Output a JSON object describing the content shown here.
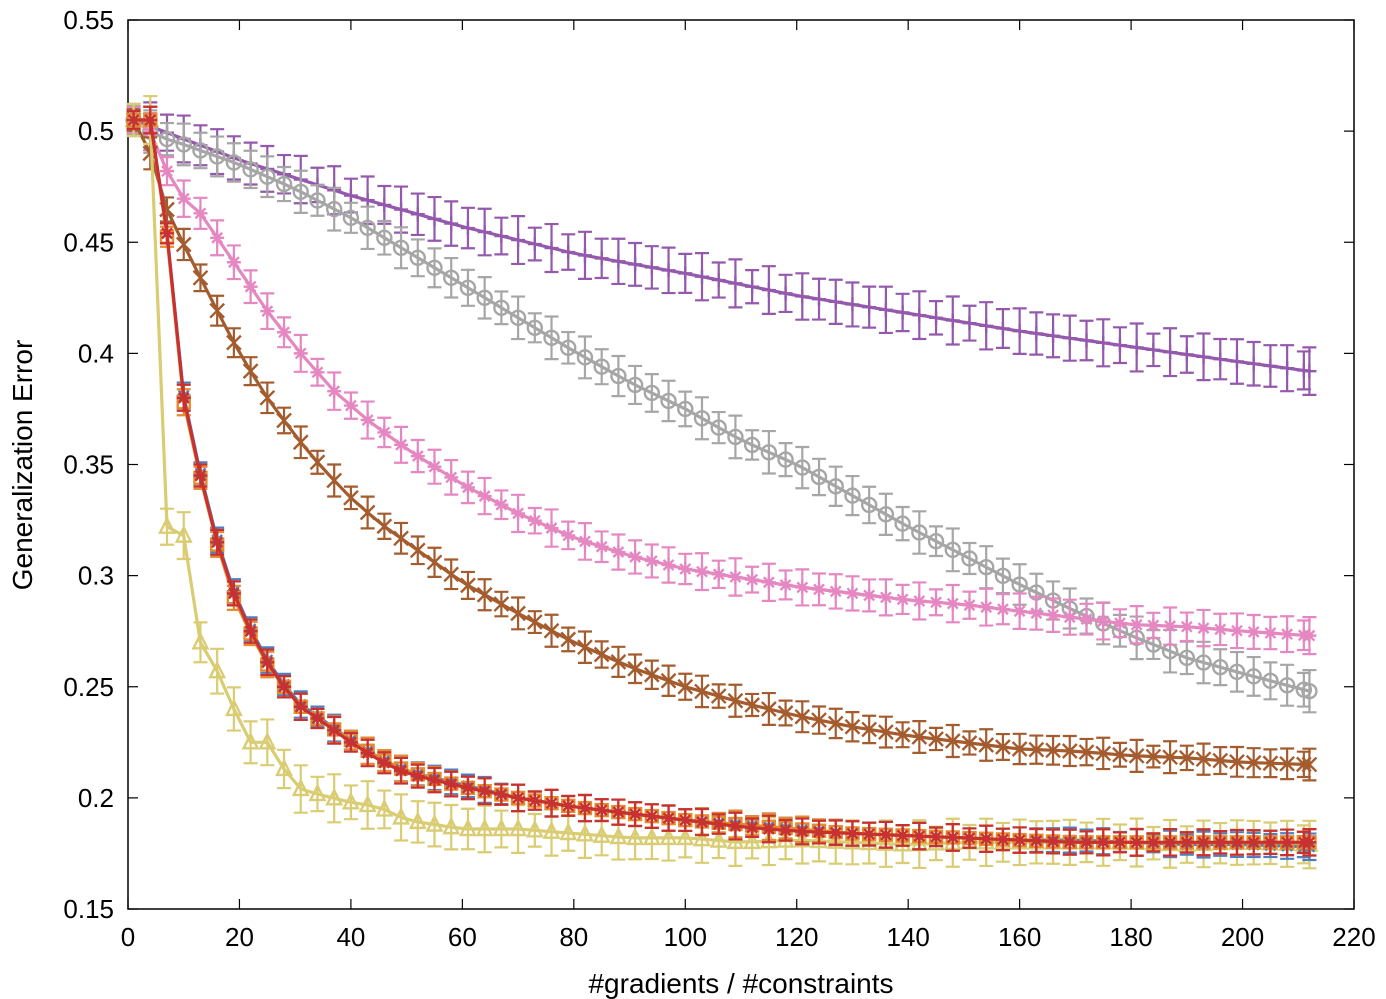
{
  "chart_data": {
    "type": "line",
    "title": "",
    "xlabel": "#gradients / #constraints",
    "ylabel": "Generalization Error",
    "xlim": [
      0,
      220
    ],
    "ylim": [
      0.15,
      0.55
    ],
    "xticks": [
      "0",
      "20",
      "40",
      "60",
      "80",
      "100",
      "120",
      "140",
      "160",
      "180",
      "200",
      "220"
    ],
    "yticks": [
      "0.15",
      "0.2",
      "0.25",
      "0.3",
      "0.35",
      "0.4",
      "0.45",
      "0.5",
      "0.55"
    ],
    "grid": false,
    "series": [
      {
        "name": "purple",
        "color": "#9458AC",
        "marker": "plus",
        "x": [
          1,
          20,
          40,
          60,
          80,
          100,
          120,
          140,
          160,
          180,
          200,
          212
        ],
        "y": [
          0.505,
          0.487,
          0.471,
          0.457,
          0.445,
          0.436,
          0.426,
          0.418,
          0.41,
          0.403,
          0.396,
          0.392
        ],
        "err": 0.009
      },
      {
        "name": "gray",
        "color": "#A6A6A6",
        "marker": "circle",
        "x": [
          1,
          5,
          10,
          20,
          30,
          40,
          50,
          60,
          70,
          80,
          90,
          100,
          110,
          120,
          130,
          140,
          150,
          160,
          170,
          180,
          190,
          200,
          212
        ],
        "y": [
          0.505,
          0.498,
          0.494,
          0.485,
          0.474,
          0.461,
          0.446,
          0.431,
          0.416,
          0.401,
          0.387,
          0.375,
          0.361,
          0.35,
          0.336,
          0.322,
          0.309,
          0.296,
          0.284,
          0.273,
          0.263,
          0.256,
          0.248
        ],
        "err": 0.008
      },
      {
        "name": "pink",
        "color": "#E587C1",
        "marker": "star",
        "x": [
          1,
          5,
          8,
          13,
          19,
          25,
          31,
          37,
          43,
          50,
          60,
          70,
          80,
          90,
          100,
          110,
          120,
          130,
          140,
          150,
          160,
          170,
          180,
          190,
          200,
          212
        ],
        "y": [
          0.505,
          0.498,
          0.474,
          0.463,
          0.441,
          0.419,
          0.4,
          0.383,
          0.37,
          0.357,
          0.341,
          0.328,
          0.317,
          0.309,
          0.303,
          0.299,
          0.295,
          0.292,
          0.289,
          0.287,
          0.284,
          0.281,
          0.278,
          0.277,
          0.275,
          0.273
        ],
        "err": 0.007
      },
      {
        "name": "brown",
        "color": "#A45C2E",
        "marker": "x",
        "x": [
          1,
          4,
          6,
          10,
          15,
          20,
          25,
          30,
          35,
          40,
          45,
          50,
          60,
          70,
          80,
          90,
          100,
          110,
          120,
          130,
          140,
          150,
          160,
          170,
          180,
          190,
          200,
          212
        ],
        "y": [
          0.505,
          0.49,
          0.47,
          0.449,
          0.424,
          0.4,
          0.38,
          0.363,
          0.348,
          0.335,
          0.324,
          0.315,
          0.297,
          0.283,
          0.27,
          0.259,
          0.25,
          0.243,
          0.237,
          0.232,
          0.228,
          0.225,
          0.222,
          0.221,
          0.219,
          0.218,
          0.216,
          0.215
        ],
        "err": 0.006
      },
      {
        "name": "yellow",
        "color": "#D9CC72",
        "marker": "triangle",
        "x": [
          1,
          4,
          6,
          7,
          10,
          13,
          16,
          19,
          22,
          25,
          28,
          31,
          35,
          40,
          45,
          50,
          60,
          70,
          80,
          90,
          100,
          110,
          120,
          130,
          140,
          150,
          160,
          170,
          180,
          190,
          200,
          212
        ],
        "y": [
          0.505,
          0.505,
          0.46,
          0.322,
          0.318,
          0.27,
          0.257,
          0.24,
          0.225,
          0.225,
          0.213,
          0.204,
          0.201,
          0.198,
          0.196,
          0.19,
          0.186,
          0.186,
          0.184,
          0.182,
          0.182,
          0.18,
          0.181,
          0.18,
          0.179,
          0.18,
          0.18,
          0.18,
          0.18,
          0.179,
          0.18,
          0.179
        ],
        "err": 0.009
      },
      {
        "name": "blue",
        "color": "#4F7EC1",
        "marker": "asterisk",
        "x": [
          1,
          4,
          6,
          8,
          10,
          13,
          16,
          19,
          22,
          25,
          28,
          31,
          35,
          40,
          45,
          50,
          60,
          70,
          80,
          90,
          100,
          110,
          120,
          130,
          140,
          150,
          160,
          170,
          180,
          190,
          200,
          212
        ],
        "y": [
          0.505,
          0.505,
          0.48,
          0.428,
          0.381,
          0.346,
          0.316,
          0.293,
          0.276,
          0.262,
          0.251,
          0.242,
          0.235,
          0.226,
          0.218,
          0.212,
          0.206,
          0.2,
          0.196,
          0.193,
          0.19,
          0.188,
          0.186,
          0.184,
          0.183,
          0.182,
          0.181,
          0.181,
          0.18,
          0.179,
          0.179,
          0.178
        ],
        "err": 0.005
      },
      {
        "name": "orange",
        "color": "#E58A2E",
        "marker": "square",
        "x": [
          1,
          4,
          6,
          8,
          10,
          13,
          16,
          19,
          22,
          25,
          28,
          31,
          35,
          40,
          45,
          50,
          60,
          70,
          80,
          90,
          100,
          110,
          120,
          130,
          140,
          150,
          160,
          170,
          180,
          190,
          200,
          212
        ],
        "y": [
          0.505,
          0.505,
          0.48,
          0.425,
          0.378,
          0.344,
          0.314,
          0.29,
          0.274,
          0.26,
          0.25,
          0.241,
          0.234,
          0.226,
          0.218,
          0.212,
          0.205,
          0.2,
          0.196,
          0.193,
          0.19,
          0.188,
          0.186,
          0.184,
          0.183,
          0.182,
          0.181,
          0.18,
          0.18,
          0.18,
          0.18,
          0.18
        ],
        "err": 0.005
      },
      {
        "name": "red",
        "color": "#C8312F",
        "marker": "star",
        "x": [
          1,
          4,
          6,
          8,
          10,
          13,
          16,
          19,
          22,
          25,
          28,
          31,
          35,
          40,
          45,
          50,
          60,
          70,
          80,
          90,
          100,
          110,
          120,
          130,
          140,
          150,
          160,
          170,
          180,
          190,
          200,
          212
        ],
        "y": [
          0.505,
          0.505,
          0.48,
          0.428,
          0.38,
          0.345,
          0.315,
          0.292,
          0.275,
          0.261,
          0.25,
          0.241,
          0.234,
          0.225,
          0.217,
          0.211,
          0.205,
          0.2,
          0.196,
          0.193,
          0.19,
          0.187,
          0.185,
          0.184,
          0.183,
          0.182,
          0.181,
          0.18,
          0.18,
          0.18,
          0.18,
          0.18
        ],
        "err": 0.005
      }
    ]
  }
}
